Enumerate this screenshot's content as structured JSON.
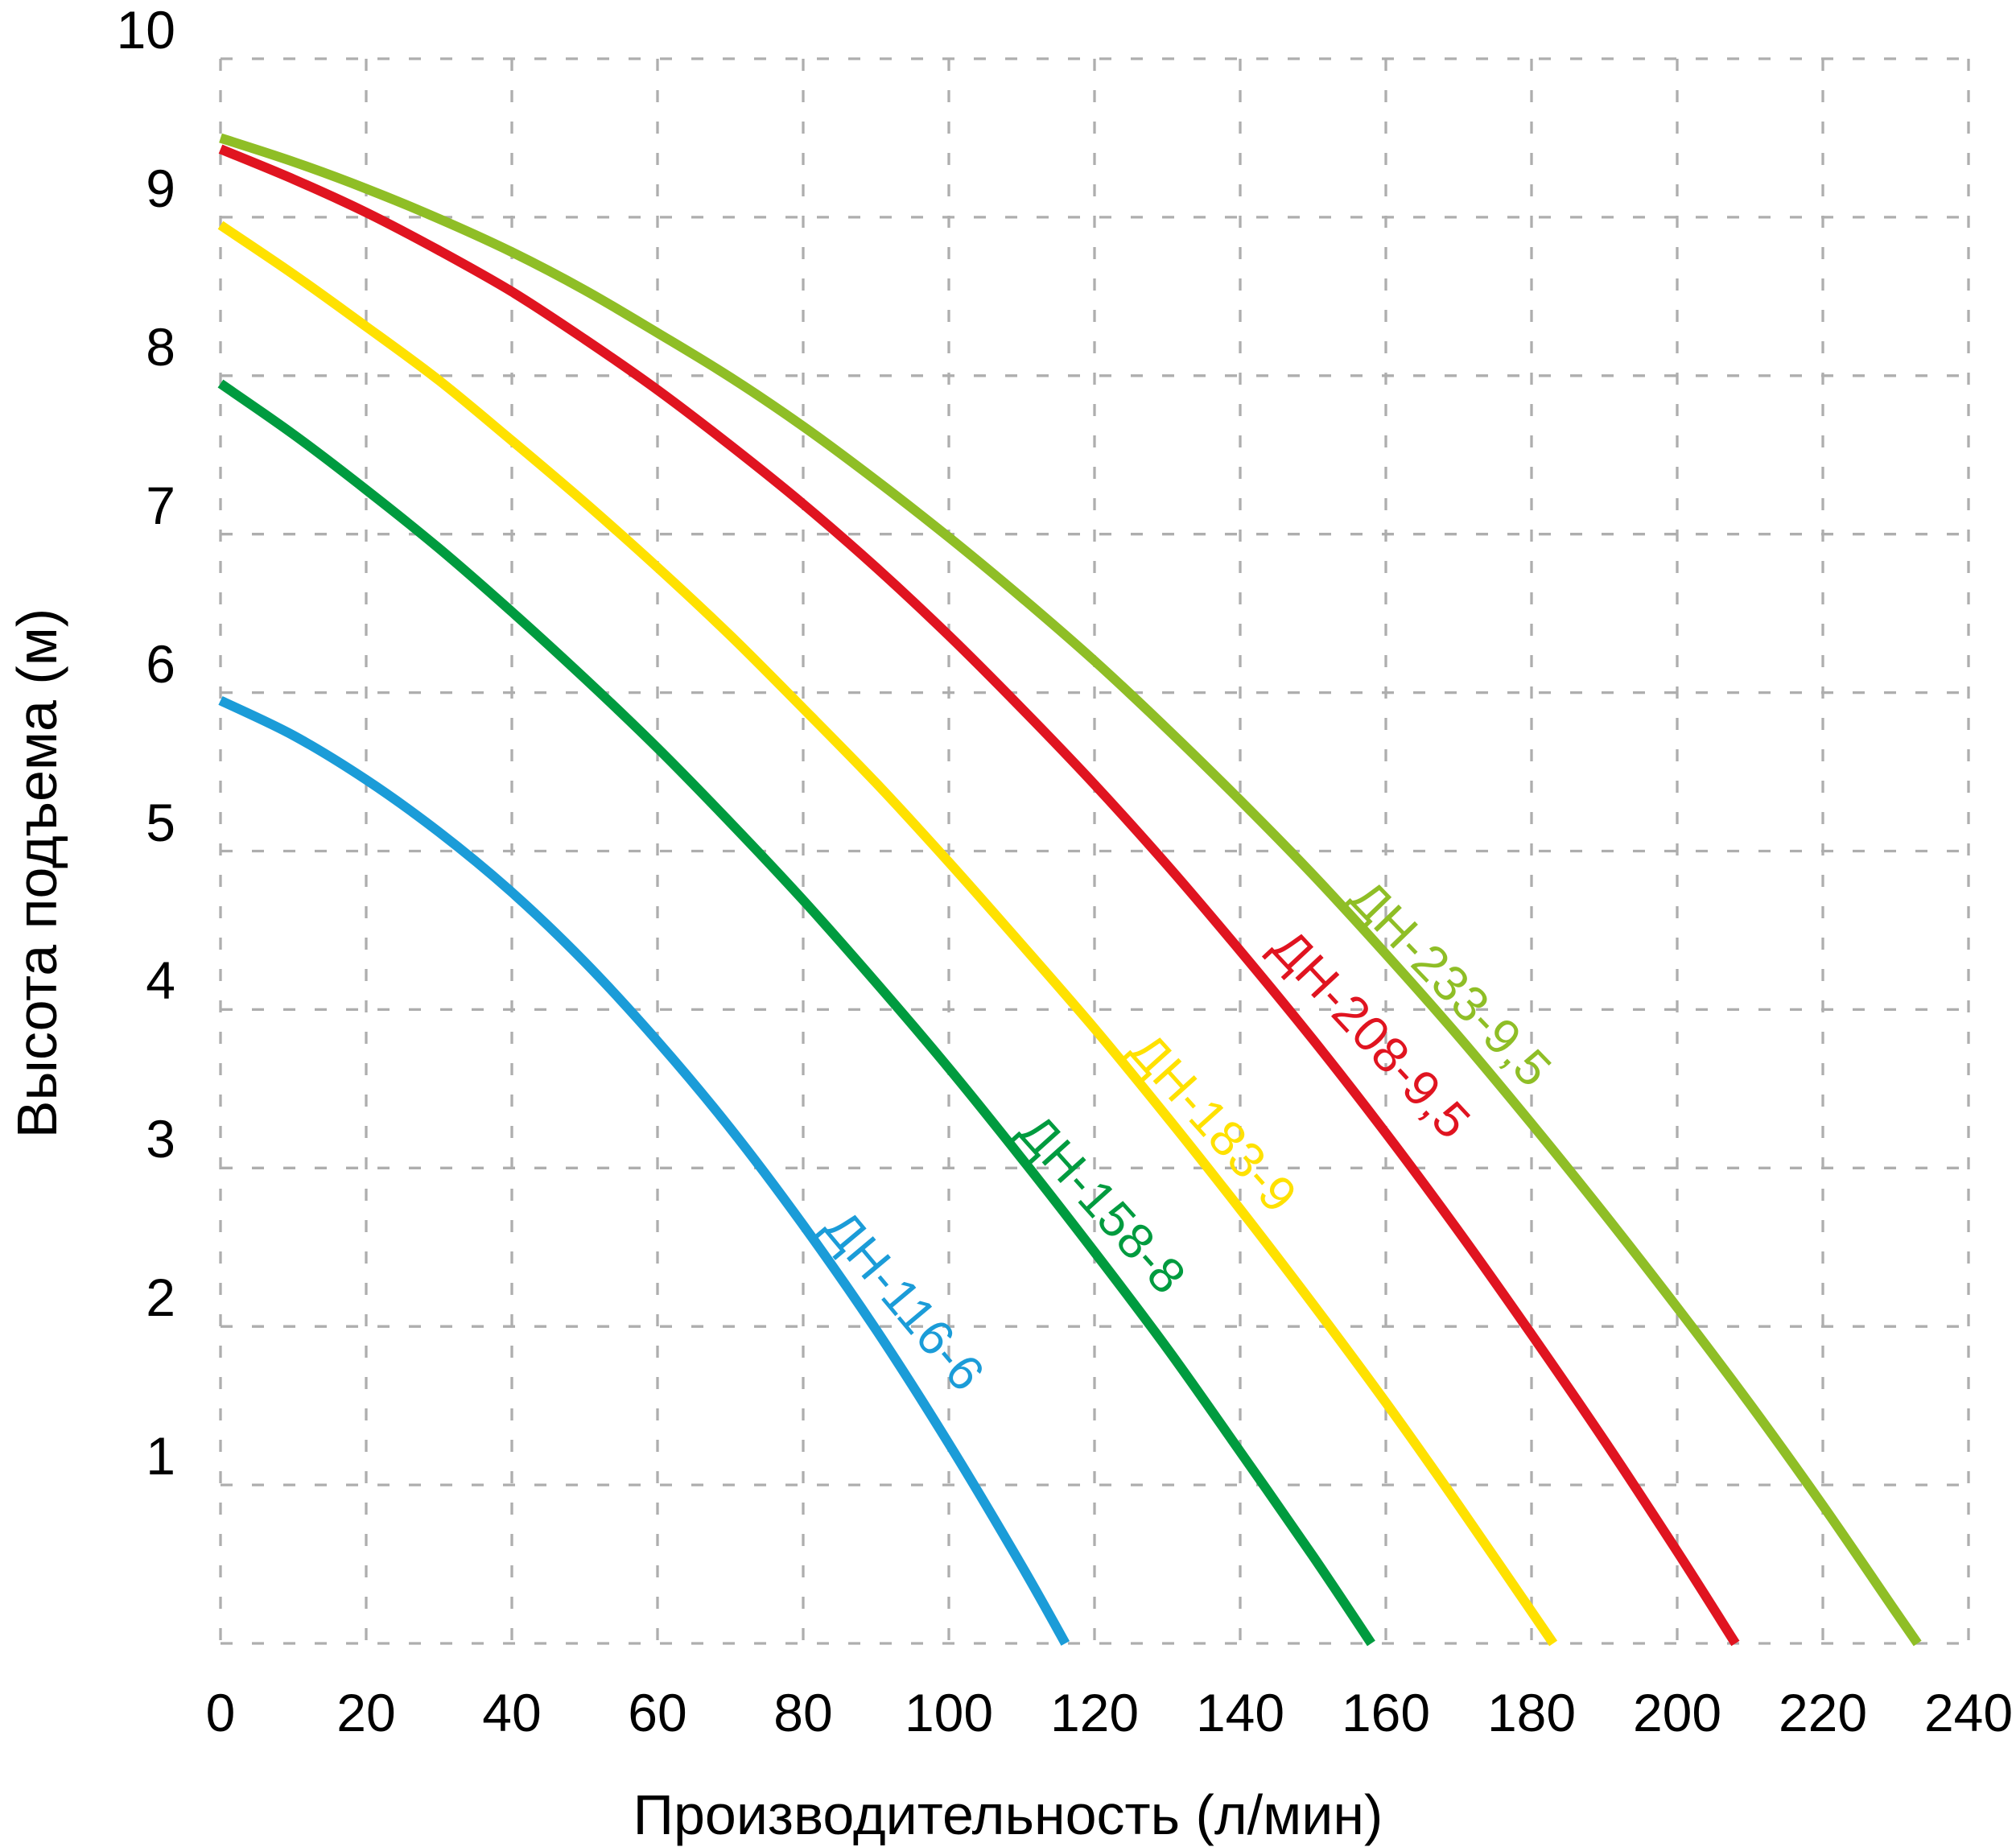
{
  "chart_data": {
    "type": "line",
    "title": "",
    "xlabel": "Производительность (л/мин)",
    "ylabel": "Высота подъема (м)",
    "xlim": [
      0,
      240
    ],
    "ylim": [
      0,
      10
    ],
    "x_ticks": [
      "0",
      "20",
      "40",
      "60",
      "80",
      "100",
      "120",
      "140",
      "160",
      "180",
      "200",
      "220",
      "240"
    ],
    "x_tick_values": [
      0,
      20,
      40,
      60,
      80,
      100,
      120,
      140,
      160,
      180,
      200,
      220,
      240
    ],
    "y_tick_labels": [
      "1",
      "2",
      "3",
      "4",
      "5",
      "6",
      "7",
      "8",
      "9",
      "10"
    ],
    "y_tick_values": [
      1,
      2,
      3,
      4,
      5,
      6,
      7,
      8,
      9,
      10
    ],
    "x_gridlines": [
      0,
      20,
      40,
      60,
      80,
      100,
      120,
      140,
      160,
      180,
      200,
      220,
      240
    ],
    "y_gridlines": [
      0,
      1,
      2,
      3,
      4,
      5,
      6,
      7,
      8,
      9,
      10
    ],
    "grid": {
      "style": "dashed",
      "color": "#aeaeae"
    },
    "legend_position": "labels-along-curves",
    "series": [
      {
        "name": "ДН-116-6",
        "color": "#1b9cd8",
        "label": {
          "q": 93.8,
          "h": 2.16,
          "rotation_deg": 50
        },
        "points": [
          [
            0,
            5.95
          ],
          [
            10,
            5.73
          ],
          [
            20,
            5.45
          ],
          [
            30,
            5.12
          ],
          [
            40,
            4.74
          ],
          [
            50,
            4.3
          ],
          [
            60,
            3.8
          ],
          [
            70,
            3.25
          ],
          [
            80,
            2.64
          ],
          [
            90,
            1.98
          ],
          [
            100,
            1.26
          ],
          [
            110,
            0.49
          ],
          [
            116,
            0
          ]
        ]
      },
      {
        "name": "ДН-158-8",
        "color": "#009b3f",
        "label": {
          "q": 121.0,
          "h": 2.77,
          "rotation_deg": 48
        },
        "points": [
          [
            0,
            7.95
          ],
          [
            10,
            7.63
          ],
          [
            20,
            7.28
          ],
          [
            30,
            6.91
          ],
          [
            40,
            6.51
          ],
          [
            50,
            6.09
          ],
          [
            60,
            5.65
          ],
          [
            70,
            5.18
          ],
          [
            80,
            4.69
          ],
          [
            90,
            4.17
          ],
          [
            100,
            3.63
          ],
          [
            110,
            3.06
          ],
          [
            120,
            2.47
          ],
          [
            130,
            1.86
          ],
          [
            140,
            1.21
          ],
          [
            150,
            0.55
          ],
          [
            158,
            0
          ]
        ]
      },
      {
        "name": "ДН-183-9",
        "color": "#ffe100",
        "label": {
          "q": 136.2,
          "h": 3.28,
          "rotation_deg": 48
        },
        "points": [
          [
            0,
            8.95
          ],
          [
            10,
            8.64
          ],
          [
            20,
            8.31
          ],
          [
            30,
            7.97
          ],
          [
            40,
            7.59
          ],
          [
            50,
            7.2
          ],
          [
            60,
            6.79
          ],
          [
            70,
            6.36
          ],
          [
            80,
            5.9
          ],
          [
            90,
            5.43
          ],
          [
            100,
            4.93
          ],
          [
            110,
            4.41
          ],
          [
            120,
            3.88
          ],
          [
            130,
            3.32
          ],
          [
            140,
            2.74
          ],
          [
            150,
            2.14
          ],
          [
            160,
            1.52
          ],
          [
            170,
            0.87
          ],
          [
            183,
            0
          ]
        ]
      },
      {
        "name": "ДН-208-9,5",
        "color": "#e01420",
        "label": {
          "q": 157.9,
          "h": 3.84,
          "rotation_deg": 47
        },
        "points": [
          [
            0,
            9.43
          ],
          [
            10,
            9.24
          ],
          [
            20,
            9.03
          ],
          [
            30,
            8.79
          ],
          [
            40,
            8.53
          ],
          [
            50,
            8.23
          ],
          [
            60,
            7.91
          ],
          [
            70,
            7.56
          ],
          [
            80,
            7.19
          ],
          [
            90,
            6.79
          ],
          [
            100,
            6.36
          ],
          [
            110,
            5.9
          ],
          [
            120,
            5.42
          ],
          [
            130,
            4.91
          ],
          [
            140,
            4.37
          ],
          [
            150,
            3.81
          ],
          [
            160,
            3.22
          ],
          [
            170,
            2.6
          ],
          [
            180,
            1.95
          ],
          [
            190,
            1.28
          ],
          [
            200,
            0.58
          ],
          [
            208,
            0
          ]
        ]
      },
      {
        "name": "ДН-233-9,5",
        "color": "#8fbe26",
        "label": {
          "q": 168.8,
          "h": 4.16,
          "rotation_deg": 46
        },
        "points": [
          [
            0,
            9.5
          ],
          [
            10,
            9.35
          ],
          [
            20,
            9.18
          ],
          [
            30,
            8.99
          ],
          [
            40,
            8.78
          ],
          [
            50,
            8.54
          ],
          [
            60,
            8.27
          ],
          [
            70,
            7.99
          ],
          [
            80,
            7.68
          ],
          [
            90,
            7.34
          ],
          [
            100,
            6.98
          ],
          [
            110,
            6.6
          ],
          [
            120,
            6.2
          ],
          [
            130,
            5.77
          ],
          [
            140,
            5.32
          ],
          [
            150,
            4.85
          ],
          [
            160,
            4.35
          ],
          [
            170,
            3.83
          ],
          [
            180,
            3.28
          ],
          [
            190,
            2.71
          ],
          [
            200,
            2.12
          ],
          [
            210,
            1.51
          ],
          [
            220,
            0.87
          ],
          [
            230,
            0.2
          ],
          [
            233,
            0
          ]
        ]
      }
    ]
  }
}
